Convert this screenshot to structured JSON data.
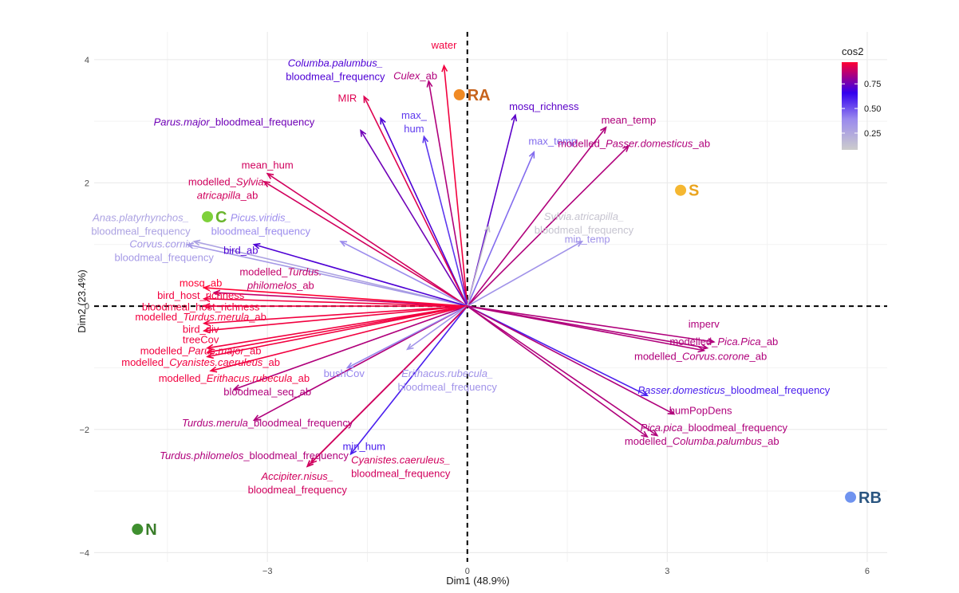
{
  "chart_data": {
    "type": "scatter",
    "subtype": "pca-biplot",
    "xlabel": "Dim1 (48.9%)",
    "ylabel": "Dim2 (23.4%)",
    "xlim": [
      -5.6,
      6.3
    ],
    "ylim": [
      -4.15,
      4.45
    ],
    "x_ticks": [
      -3,
      0,
      3,
      6
    ],
    "y_ticks": [
      -4,
      -2,
      0,
      2,
      4
    ],
    "x_tick_labels": [
      "−3",
      "0",
      "3",
      "6"
    ],
    "y_tick_labels": [
      "−4",
      "−2",
      "0",
      "2",
      "4"
    ],
    "grid": true,
    "legend": {
      "title": "cos2",
      "position": "top-right",
      "ticks": [
        0.25,
        0.5,
        0.75
      ],
      "tick_labels": [
        "0.25",
        "0.50",
        "0.75"
      ],
      "range": [
        0.08,
        0.97
      ],
      "colors": [
        "#cccccc",
        "#9a8aee",
        "#3300ee",
        "#ff0033"
      ]
    },
    "variables": [
      {
        "x": -0.35,
        "y": 3.9,
        "cos2": 0.95,
        "label": [
          [
            [
              "water",
              false
            ]
          ]
        ],
        "lx": -0.35,
        "ly": 4.18
      },
      {
        "x": -0.58,
        "y": 3.65,
        "cos2": 0.85,
        "label": [
          [
            [
              "Culex",
              true
            ],
            [
              "_ab",
              false
            ]
          ]
        ],
        "lx": -0.78,
        "ly": 3.68
      },
      {
        "x": -1.3,
        "y": 3.05,
        "cos2": 0.7,
        "label": [
          [
            [
              "Columba.palumbus_",
              true
            ]
          ],
          [
            [
              "bloodmeal_frequency",
              false
            ]
          ]
        ],
        "lx": -1.98,
        "ly": 3.89
      },
      {
        "x": -1.55,
        "y": 3.4,
        "cos2": 0.92,
        "label": [
          [
            [
              "MIR",
              false
            ]
          ]
        ],
        "lx": -1.8,
        "ly": 3.32
      },
      {
        "x": -0.65,
        "y": 2.75,
        "cos2": 0.55,
        "label": [
          [
            [
              "max_",
              false
            ]
          ],
          [
            [
              "hum",
              false
            ]
          ]
        ],
        "lx": -0.8,
        "ly": 3.04
      },
      {
        "x": 0.72,
        "y": 3.1,
        "cos2": 0.72,
        "label": [
          [
            [
              "mosq_richness",
              false
            ]
          ]
        ],
        "lx": 1.15,
        "ly": 3.18
      },
      {
        "x": 1.0,
        "y": 2.5,
        "cos2": 0.45,
        "label": [
          [
            [
              "max_temp",
              false
            ]
          ]
        ],
        "lx": 1.28,
        "ly": 2.62
      },
      {
        "x": 2.08,
        "y": 2.9,
        "cos2": 0.85,
        "label": [
          [
            [
              "mean_temp",
              false
            ]
          ]
        ],
        "lx": 2.42,
        "ly": 2.96
      },
      {
        "x": 2.42,
        "y": 2.6,
        "cos2": 0.85,
        "label": [
          [
            [
              "modelled_",
              false
            ],
            [
              "Passer.domesticus",
              true
            ],
            [
              "_ab",
              false
            ]
          ]
        ],
        "lx": 2.5,
        "ly": 2.58
      },
      {
        "x": -1.6,
        "y": 2.85,
        "cos2": 0.75,
        "label": [
          [
            [
              "Parus.major",
              true
            ],
            [
              "_bloodmeal_frequency",
              false
            ]
          ]
        ],
        "lx": -3.5,
        "ly": 2.93
      },
      {
        "x": -3.0,
        "y": 2.15,
        "cos2": 0.9,
        "label": [
          [
            [
              "mean_hum",
              false
            ]
          ]
        ],
        "lx": -3.0,
        "ly": 2.23
      },
      {
        "x": -3.05,
        "y": 2.02,
        "cos2": 0.9,
        "label": [
          [
            [
              "modelled_",
              false
            ],
            [
              "Sylvia.",
              true
            ]
          ],
          [
            [
              "atricapilla",
              true
            ],
            [
              "_ab",
              false
            ]
          ]
        ],
        "lx": -3.6,
        "ly": 1.96
      },
      {
        "x": 0.32,
        "y": 1.3,
        "cos2": 0.12,
        "label": [
          [
            [
              "Sylvia.atricapilla_",
              true
            ]
          ],
          [
            [
              "bloodmeal_frequency",
              false
            ]
          ]
        ],
        "lx": 1.75,
        "ly": 1.4
      },
      {
        "x": 1.72,
        "y": 1.05,
        "cos2": 0.35,
        "label": [
          [
            [
              "min_temp",
              false
            ]
          ]
        ],
        "lx": 1.8,
        "ly": 1.03
      },
      {
        "x": -4.1,
        "y": 1.05,
        "cos2": 0.28,
        "label": [
          [
            [
              "Anas.platyrhynchos_",
              true
            ]
          ],
          [
            [
              "bloodmeal_frequency",
              false
            ]
          ]
        ],
        "lx": -4.9,
        "ly": 1.38
      },
      {
        "x": -1.9,
        "y": 1.05,
        "cos2": 0.38,
        "label": [
          [
            [
              "Picus.viridis_",
              true
            ]
          ],
          [
            [
              "bloodmeal_frequency",
              false
            ]
          ]
        ],
        "lx": -3.1,
        "ly": 1.38
      },
      {
        "x": -4.2,
        "y": 1.0,
        "cos2": 0.32,
        "label": [
          [
            [
              "Corvus.cornix_",
              true
            ]
          ],
          [
            [
              "bloodmeal_frequency",
              false
            ]
          ]
        ],
        "lx": -4.55,
        "ly": 0.95
      },
      {
        "x": -3.2,
        "y": 1.0,
        "cos2": 0.7,
        "label": [
          [
            [
              "bird_ab",
              false
            ]
          ]
        ],
        "lx": -3.4,
        "ly": 0.85
      },
      {
        "x": -3.8,
        "y": 0.22,
        "cos2": 0.88,
        "label": [
          [
            [
              "modelled_",
              false
            ],
            [
              "Turdus.",
              true
            ]
          ],
          [
            [
              "philomelos",
              true
            ],
            [
              "_ab",
              false
            ]
          ]
        ],
        "lx": -2.8,
        "ly": 0.5
      },
      {
        "x": -3.95,
        "y": 0.3,
        "cos2": 0.97,
        "label": [
          [
            [
              "mosq_ab",
              false
            ]
          ]
        ],
        "lx": -4.0,
        "ly": 0.32
      },
      {
        "x": -3.95,
        "y": 0.12,
        "cos2": 0.95,
        "label": [
          [
            [
              "bird_host_richness",
              false
            ]
          ]
        ],
        "lx": -4.0,
        "ly": 0.12
      },
      {
        "x": -3.95,
        "y": 0.0,
        "cos2": 0.95,
        "label": [
          [
            [
              "bloodmeal_host_richness",
              false
            ]
          ]
        ],
        "lx": -4.0,
        "ly": -0.07
      },
      {
        "x": -3.95,
        "y": -0.28,
        "cos2": 0.95,
        "label": [
          [
            [
              "modelled_",
              false
            ],
            [
              "Turdus.merula",
              true
            ],
            [
              "_ab",
              false
            ]
          ]
        ],
        "lx": -4.0,
        "ly": -0.23
      },
      {
        "x": -3.95,
        "y": -0.4,
        "cos2": 0.95,
        "label": [
          [
            [
              "bird_div",
              false
            ]
          ]
        ],
        "lx": -4.0,
        "ly": -0.43
      },
      {
        "x": -3.9,
        "y": -0.68,
        "cos2": 0.95,
        "label": [
          [
            [
              "treeCov",
              false
            ]
          ]
        ],
        "lx": -4.0,
        "ly": -0.6
      },
      {
        "x": -3.9,
        "y": -0.75,
        "cos2": 0.95,
        "label": [
          [
            [
              "modelled_",
              false
            ],
            [
              "Parus.major",
              true
            ],
            [
              "_ab",
              false
            ]
          ]
        ],
        "lx": -4.0,
        "ly": -0.78
      },
      {
        "x": -3.9,
        "y": -0.82,
        "cos2": 0.95,
        "label": [
          [
            [
              "modelled_",
              false
            ],
            [
              "Cyanistes.caeruleus",
              true
            ],
            [
              "_ab",
              false
            ]
          ]
        ],
        "lx": -4.0,
        "ly": -0.97
      },
      {
        "x": -3.85,
        "y": -1.05,
        "cos2": 0.95,
        "label": [
          [
            [
              "modelled_",
              false
            ],
            [
              "Erithacus.rubecula",
              true
            ],
            [
              "_ab",
              false
            ]
          ]
        ],
        "lx": -3.5,
        "ly": -1.23
      },
      {
        "x": -3.5,
        "y": -1.35,
        "cos2": 0.85,
        "label": [
          [
            [
              "bloodmeal_seq_ab",
              false
            ]
          ]
        ],
        "lx": -3.0,
        "ly": -1.45
      },
      {
        "x": -3.2,
        "y": -1.85,
        "cos2": 0.85,
        "label": [
          [
            [
              "Turdus.merula",
              true
            ],
            [
              "_bloodmeal_frequency",
              false
            ]
          ]
        ],
        "lx": -3.0,
        "ly": -1.95
      },
      {
        "x": -1.8,
        "y": -1.0,
        "cos2": 0.4,
        "label": [
          [
            [
              "bushCov",
              false
            ]
          ]
        ],
        "lx": -1.85,
        "ly": -1.15
      },
      {
        "x": -0.9,
        "y": -0.7,
        "cos2": 0.35,
        "label": [
          [
            [
              "Erithacus.rubecula_",
              true
            ]
          ],
          [
            [
              "bloodmeal_frequency",
              false
            ]
          ]
        ],
        "lx": -0.3,
        "ly": -1.15
      },
      {
        "x": -1.75,
        "y": -2.4,
        "cos2": 0.6,
        "label": [
          [
            [
              "min_hum",
              false
            ]
          ]
        ],
        "lx": -1.55,
        "ly": -2.33
      },
      {
        "x": -2.4,
        "y": -2.6,
        "cos2": 0.85,
        "label": [
          [
            [
              "Turdus.philomelos",
              true
            ],
            [
              "_bloodmeal_frequency",
              false
            ]
          ]
        ],
        "lx": -3.2,
        "ly": -2.48
      },
      {
        "x": -2.35,
        "y": -2.55,
        "cos2": 0.9,
        "label": [
          [
            [
              "Cyanistes.caeruleus_",
              true
            ]
          ],
          [
            [
              "bloodmeal_frequency",
              false
            ]
          ]
        ],
        "lx": -1.0,
        "ly": -2.55
      },
      {
        "x": -2.4,
        "y": -2.6,
        "cos2": 0.9,
        "label": [
          [
            [
              "Accipiter.nisus_",
              true
            ]
          ],
          [
            [
              "bloodmeal_frequency",
              false
            ]
          ]
        ],
        "lx": -2.55,
        "ly": -2.82
      },
      {
        "x": 3.7,
        "y": -0.58,
        "cos2": 0.85,
        "label": [
          [
            [
              "imperv",
              false
            ]
          ]
        ],
        "lx": 3.55,
        "ly": -0.35
      },
      {
        "x": 3.6,
        "y": -0.68,
        "cos2": 0.85,
        "label": [
          [
            [
              "modelled_",
              false
            ],
            [
              "Pica.Pica",
              true
            ],
            [
              "_ab",
              false
            ]
          ]
        ],
        "lx": 3.85,
        "ly": -0.63
      },
      {
        "x": 3.55,
        "y": -0.72,
        "cos2": 0.85,
        "label": [
          [
            [
              "modelled_",
              false
            ],
            [
              "Corvus.corone",
              true
            ],
            [
              "_ab",
              false
            ]
          ]
        ],
        "lx": 3.5,
        "ly": -0.87
      },
      {
        "x": 2.7,
        "y": -1.45,
        "cos2": 0.6,
        "label": [
          [
            [
              "Passer.domesticus",
              true
            ],
            [
              "_bloodmeal_frequency",
              false
            ]
          ]
        ],
        "lx": 4.0,
        "ly": -1.42
      },
      {
        "x": 3.1,
        "y": -1.75,
        "cos2": 0.85,
        "label": [
          [
            [
              "humPopDens",
              false
            ]
          ]
        ],
        "lx": 3.5,
        "ly": -1.75
      },
      {
        "x": 2.85,
        "y": -2.1,
        "cos2": 0.85,
        "label": [
          [
            [
              "Pica.pica",
              true
            ],
            [
              "_bloodmeal_frequency",
              false
            ]
          ]
        ],
        "lx": 3.7,
        "ly": -2.03
      },
      {
        "x": 2.7,
        "y": -2.12,
        "cos2": 0.85,
        "label": [
          [
            [
              "modelled_",
              false
            ],
            [
              "Columba.palumbus",
              true
            ],
            [
              "_ab",
              false
            ]
          ]
        ],
        "lx": 3.52,
        "ly": -2.25
      }
    ],
    "groups": [
      {
        "name": "RA",
        "x": -0.12,
        "y": 3.43,
        "color": "#f08a24",
        "label_color": "#c7631c"
      },
      {
        "name": "S",
        "x": 3.2,
        "y": 1.88,
        "color": "#f5b731",
        "label_color": "#eaa41f"
      },
      {
        "name": "C",
        "x": -3.9,
        "y": 1.45,
        "color": "#7ed13b",
        "label_color": "#69b52c"
      },
      {
        "name": "N",
        "x": -4.95,
        "y": -3.62,
        "color": "#3f8f2f",
        "label_color": "#3a7d2a"
      },
      {
        "name": "RB",
        "x": 5.75,
        "y": -3.1,
        "color": "#6f93ef",
        "label_color": "#2a5580"
      }
    ]
  }
}
